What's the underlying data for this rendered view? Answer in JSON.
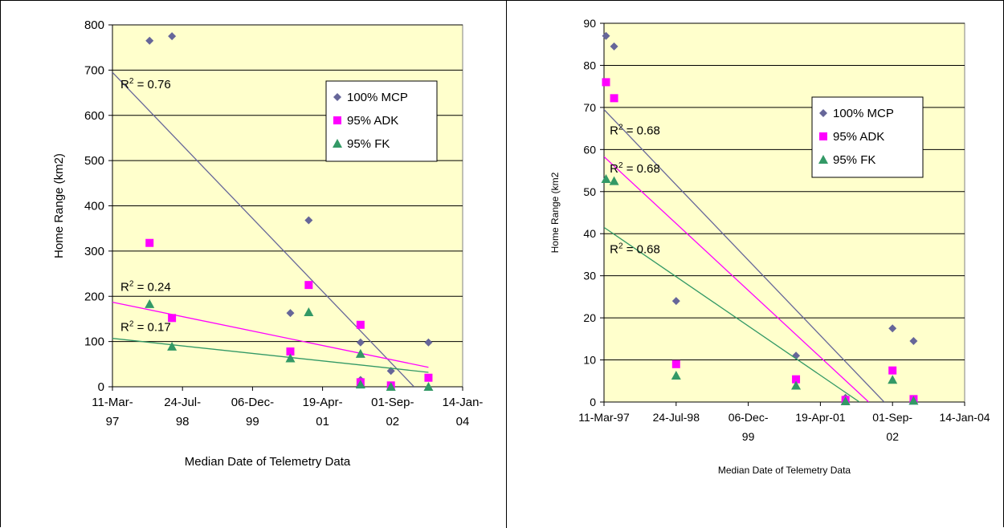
{
  "chart_data": [
    {
      "type": "scatter",
      "xlabel": "Median Date of Telemetry Data",
      "ylabel": "Home Range (km2)",
      "ylim": [
        0,
        800
      ],
      "yticks": [
        0,
        100,
        200,
        300,
        400,
        500,
        600,
        700,
        800
      ],
      "xlim": [
        "1997-03-11",
        "2004-01-14"
      ],
      "xtick_values": [
        "1997-03-11",
        "1998-07-24",
        "1999-12-06",
        "2001-04-19",
        "2002-09-01",
        "2004-01-14"
      ],
      "xtick_labels": [
        [
          "11-Mar-",
          "97"
        ],
        [
          "24-Jul-",
          "98"
        ],
        [
          "06-Dec-",
          "99"
        ],
        [
          "19-Apr-",
          "01"
        ],
        [
          "01-Sep-",
          "02"
        ],
        [
          "14-Jan-",
          "04"
        ]
      ],
      "legend_position": "top-right",
      "plot_background": "#ffffcc",
      "series": [
        {
          "name": "100% MCP",
          "marker": "diamond",
          "color": "#666699",
          "x": [
            "1997-12-01",
            "1998-05-10",
            "2000-09-01",
            "2001-01-10",
            "2002-01-15",
            "2002-01-15",
            "2002-08-20",
            "2003-05-15"
          ],
          "y": [
            765,
            775,
            163,
            368,
            98,
            15,
            35,
            98
          ],
          "trendline": {
            "x": [
              "1997-03-11",
              "2003-02-01"
            ],
            "y": [
              695,
              0
            ]
          }
        },
        {
          "name": "95% ADK",
          "marker": "square",
          "color": "#ff00ff",
          "x": [
            "1997-12-01",
            "1998-05-10",
            "2000-09-01",
            "2001-01-10",
            "2002-01-15",
            "2002-01-15",
            "2002-08-20",
            "2003-05-15"
          ],
          "y": [
            318,
            152,
            78,
            225,
            137,
            10,
            3,
            20
          ],
          "trendline": {
            "x": [
              "1997-03-11",
              "2003-05-15"
            ],
            "y": [
              187,
              43
            ]
          }
        },
        {
          "name": "95% FK",
          "marker": "triangle",
          "color": "#339966",
          "x": [
            "1997-12-01",
            "1998-05-10",
            "2000-09-01",
            "2001-01-10",
            "2002-01-15",
            "2002-01-15",
            "2002-08-20",
            "2003-05-15"
          ],
          "y": [
            183,
            89,
            63,
            165,
            73,
            5,
            0,
            0
          ],
          "trendline": {
            "x": [
              "1997-03-11",
              "2003-05-15"
            ],
            "y": [
              107,
              32
            ]
          }
        }
      ],
      "annotations": [
        {
          "text": "R",
          "sup": "2",
          "rest": " = 0.76",
          "x": "1997-03-11",
          "y": 660
        },
        {
          "text": "R",
          "sup": "2",
          "rest": " = 0.24",
          "x": "1997-03-11",
          "y": 212
        },
        {
          "text": "R",
          "sup": "2",
          "rest": " = 0.17",
          "x": "1997-03-11",
          "y": 123
        }
      ]
    },
    {
      "type": "scatter",
      "xlabel": "Median Date of Telemetry Data",
      "ylabel": "Home Range (km2",
      "ylim": [
        0,
        90
      ],
      "yticks": [
        0,
        10,
        20,
        30,
        40,
        50,
        60,
        70,
        80,
        90
      ],
      "xlim": [
        "1997-03-11",
        "2004-01-14"
      ],
      "xtick_values": [
        "1997-03-11",
        "1998-07-24",
        "1999-12-06",
        "2001-04-19",
        "2002-09-01",
        "2004-01-14"
      ],
      "xtick_labels": [
        [
          "11-Mar-97"
        ],
        [
          "24-Jul-98"
        ],
        [
          "06-Dec-",
          "99"
        ],
        [
          "19-Apr-01"
        ],
        [
          "01-Sep-",
          "02"
        ],
        [
          "14-Jan-04"
        ]
      ],
      "legend_position": "top-right",
      "plot_background": "#ffffcc",
      "series": [
        {
          "name": "100% MCP",
          "marker": "diamond",
          "color": "#666699",
          "x": [
            "1997-03-25",
            "1997-05-20",
            "1998-07-24",
            "2000-11-01",
            "2001-10-10",
            "2002-09-01",
            "2003-01-25"
          ],
          "y": [
            87,
            84.5,
            24,
            11,
            1,
            17.5,
            14.5
          ],
          "trendline": {
            "x": [
              "1997-03-11",
              "2002-07-05"
            ],
            "y": [
              69.5,
              0
            ]
          }
        },
        {
          "name": "95% ADK",
          "marker": "square",
          "color": "#ff00ff",
          "x": [
            "1997-03-25",
            "1997-05-20",
            "1998-07-24",
            "2000-11-01",
            "2001-10-10",
            "2002-09-01",
            "2003-01-25"
          ],
          "y": [
            76,
            72.2,
            9,
            5.4,
            0.5,
            7.5,
            0.7
          ],
          "trendline": {
            "x": [
              "1997-03-11",
              "2002-03-20"
            ],
            "y": [
              58.3,
              0
            ]
          }
        },
        {
          "name": "95% FK",
          "marker": "triangle",
          "color": "#339966",
          "x": [
            "1997-03-25",
            "1997-05-20",
            "1998-07-24",
            "2000-11-01",
            "2001-10-10",
            "2002-09-01",
            "2003-01-25"
          ],
          "y": [
            53,
            52.5,
            6.3,
            3.9,
            0.2,
            5.3,
            0.3
          ],
          "trendline": {
            "x": [
              "1997-03-11",
              "2002-01-15"
            ],
            "y": [
              41.5,
              0
            ]
          }
        }
      ],
      "annotations": [
        {
          "text": "R",
          "sup": "2",
          "rest": " = 0.68",
          "x": "1997-04-20",
          "y": 63.6
        },
        {
          "text": "R",
          "sup": "2",
          "rest": " = 0.68",
          "x": "1997-04-20",
          "y": 54.5
        },
        {
          "text": "R",
          "sup": "2",
          "rest": " = 0.68",
          "x": "1997-04-20",
          "y": 35.4
        }
      ]
    }
  ]
}
